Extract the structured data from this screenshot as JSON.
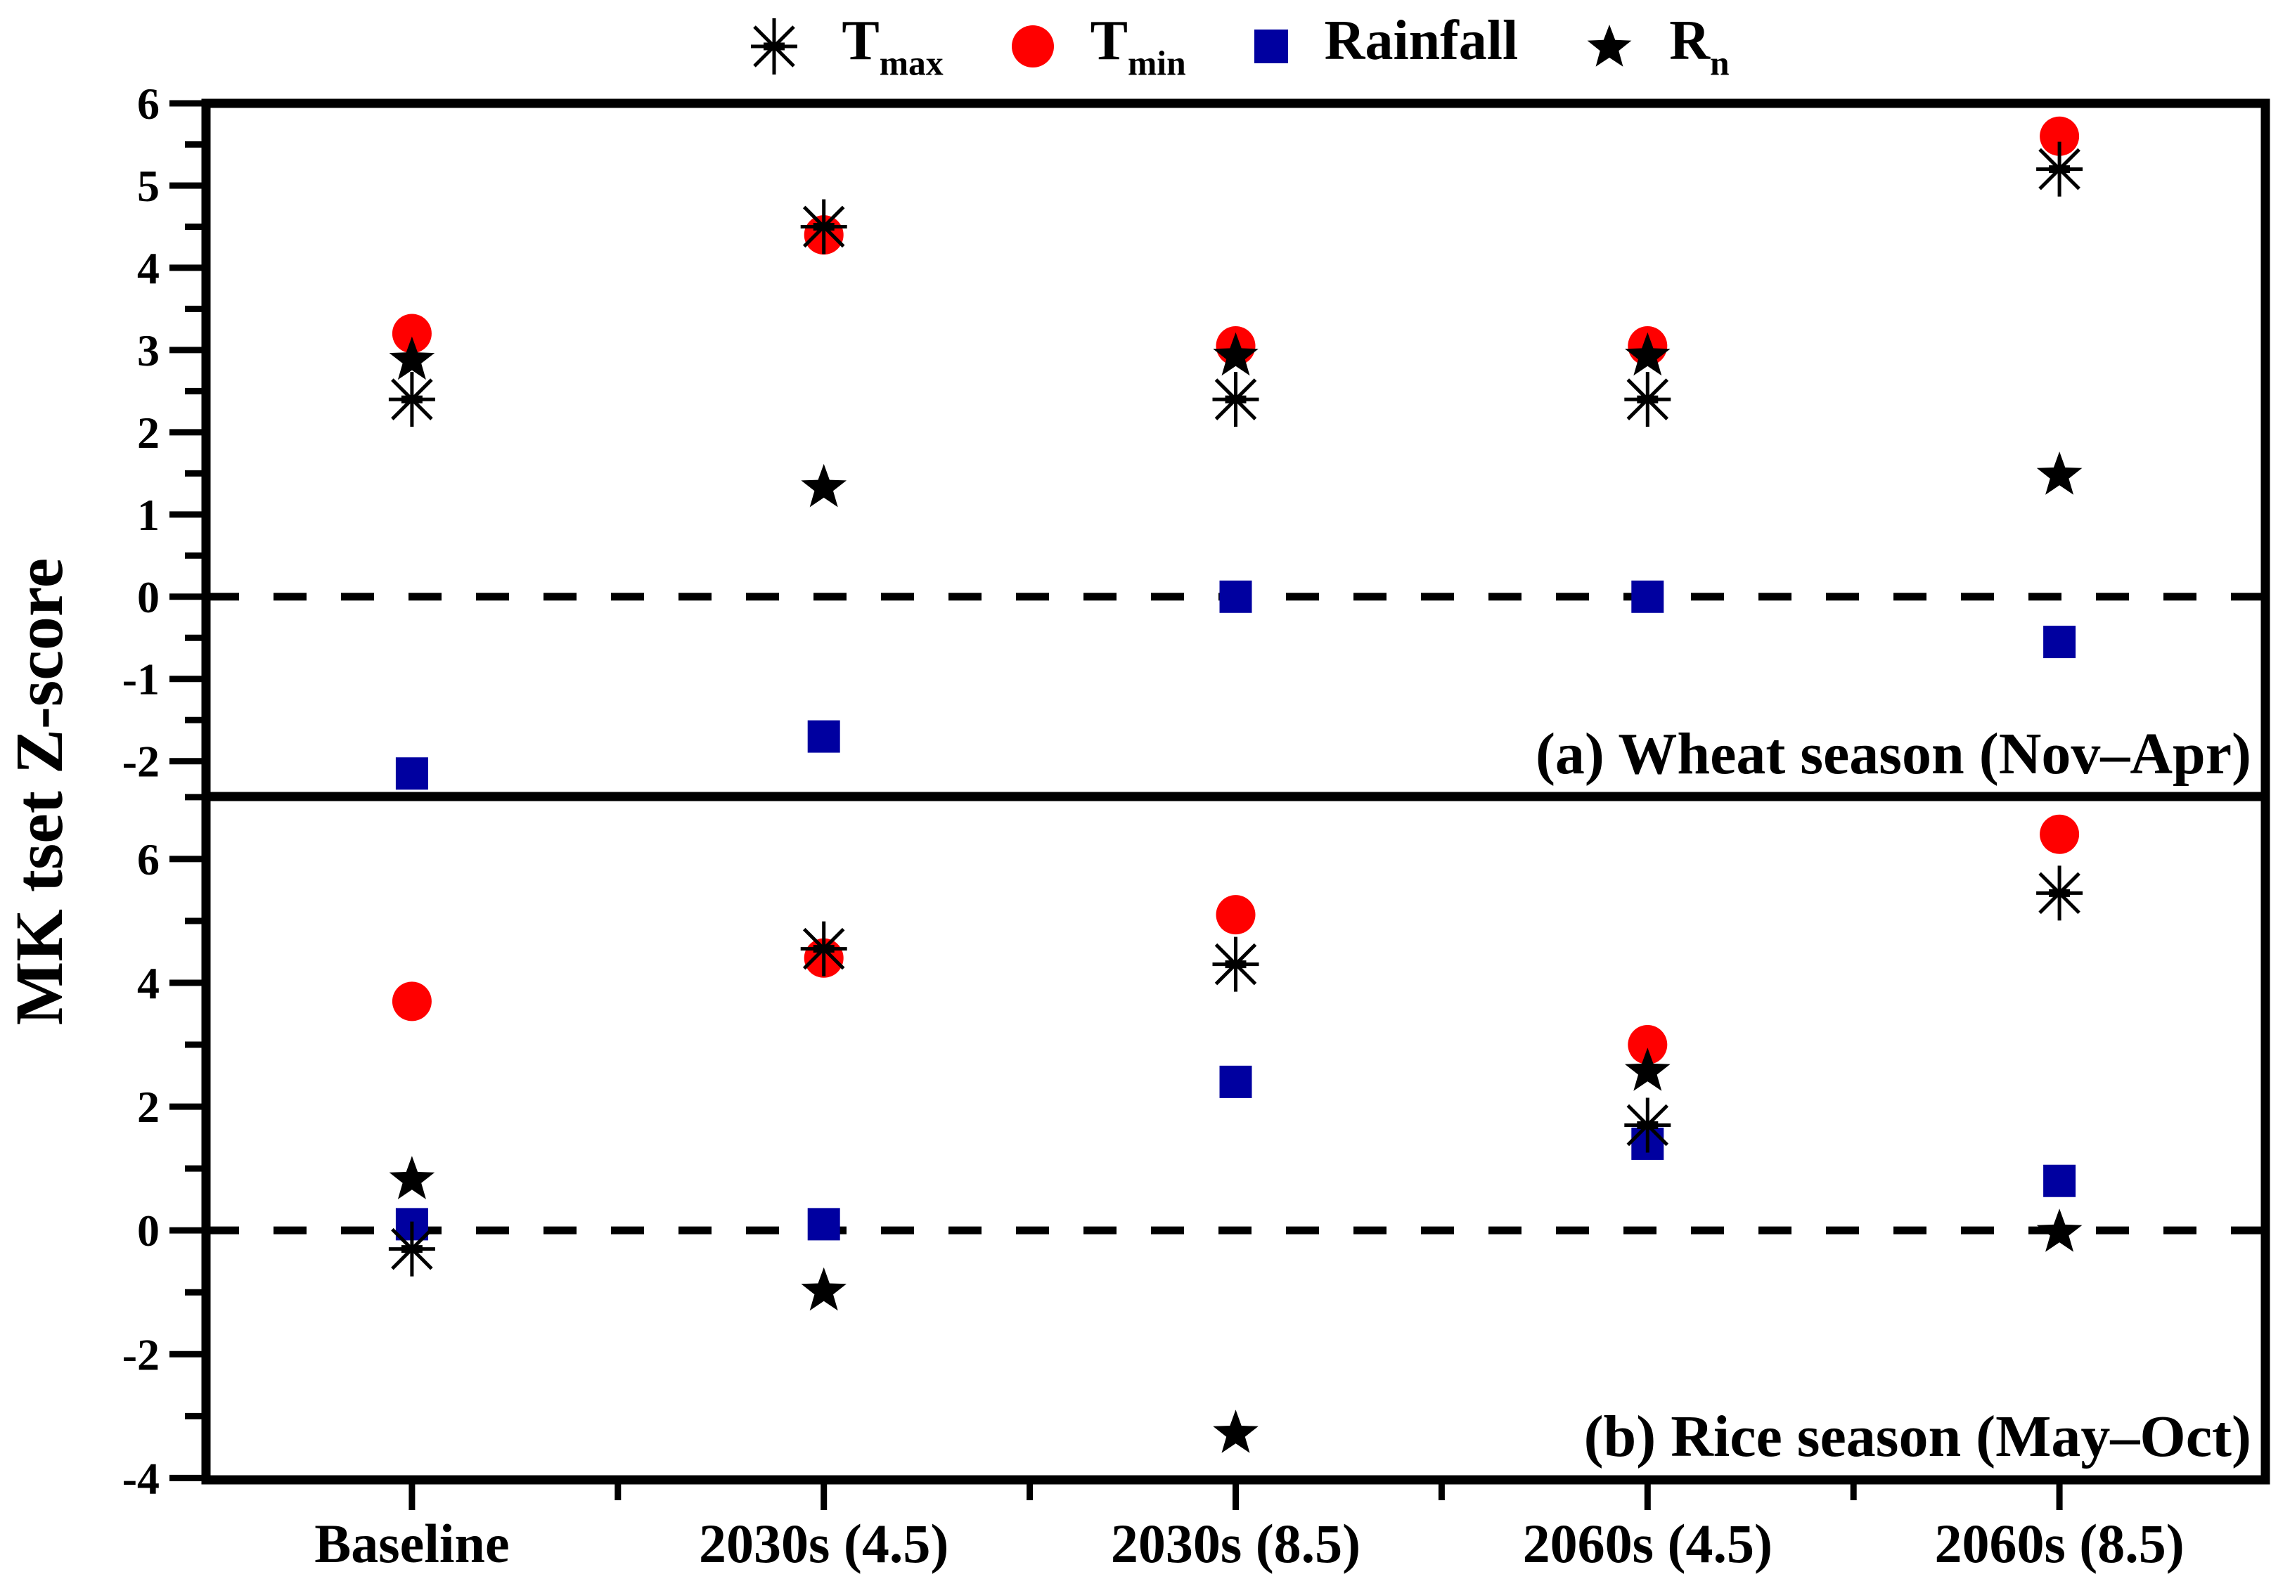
{
  "colors": {
    "red": "#FF0000",
    "blue": "#0000A0",
    "black": "#000000"
  },
  "legend": {
    "items": [
      {
        "symbol": "asterisk-icon",
        "base": "T",
        "sub": "max"
      },
      {
        "symbol": "circle-icon",
        "base": "T",
        "sub": "min"
      },
      {
        "symbol": "square-icon",
        "base": "Rainfall",
        "sub": ""
      },
      {
        "symbol": "star-icon",
        "base": "R",
        "sub": "n"
      }
    ]
  },
  "chart_data": {
    "type": "scatter",
    "title": "",
    "ylabel": "MK tset Z-score",
    "xlabel": "",
    "categories": [
      "Baseline",
      "2030s (4.5)",
      "2030s (8.5)",
      "2060s (4.5)",
      "2060s (8.5)"
    ],
    "legend_position": "top-center",
    "grid": false,
    "panels": [
      {
        "id": "a",
        "label": "(a) Wheat season (Nov–Apr)",
        "ylim": [
          -2.43,
          6.0
        ],
        "yticks_labeled": [
          -2,
          -1,
          0,
          1,
          2,
          3,
          4,
          5,
          6
        ],
        "yticks_minor": [
          -1.5,
          -0.5,
          0.5,
          1.5,
          2.5,
          3.5,
          4.5,
          5.5
        ],
        "zero_line_dashed": true,
        "series": [
          {
            "name": "Tmax",
            "marker": "asterisk",
            "color": "#000000",
            "values": [
              2.4,
              4.5,
              2.4,
              2.4,
              5.2
            ]
          },
          {
            "name": "Tmin",
            "marker": "circle",
            "color": "#FF0000",
            "values": [
              3.2,
              4.4,
              3.05,
              3.05,
              5.6
            ]
          },
          {
            "name": "Rainfall",
            "marker": "square",
            "color": "#0000A0",
            "values": [
              -2.15,
              -1.7,
              0.0,
              0.0,
              -0.55
            ]
          },
          {
            "name": "Rn",
            "marker": "star",
            "color": "#000000",
            "values": [
              2.9,
              1.35,
              2.95,
              2.95,
              1.5
            ]
          }
        ]
      },
      {
        "id": "b",
        "label": "(b) Rice season (May–Oct)",
        "ylim": [
          -4.03,
          7.01
        ],
        "yticks_labeled": [
          -4,
          -2,
          0,
          2,
          4,
          6
        ],
        "yticks_minor": [
          -3,
          -1,
          1,
          3,
          5,
          7
        ],
        "zero_line_dashed": true,
        "series": [
          {
            "name": "Tmax",
            "marker": "asterisk",
            "color": "#000000",
            "values": [
              -0.3,
              4.55,
              4.3,
              1.7,
              5.45
            ]
          },
          {
            "name": "Tmin",
            "marker": "circle",
            "color": "#FF0000",
            "values": [
              3.7,
              4.4,
              5.1,
              3.0,
              6.4
            ]
          },
          {
            "name": "Rainfall",
            "marker": "square",
            "color": "#0000A0",
            "values": [
              0.1,
              0.1,
              2.4,
              1.4,
              0.8
            ]
          },
          {
            "name": "Rn",
            "marker": "star",
            "color": "#000000",
            "values": [
              0.85,
              -0.95,
              -3.25,
              2.6,
              0.0
            ]
          }
        ]
      }
    ]
  }
}
